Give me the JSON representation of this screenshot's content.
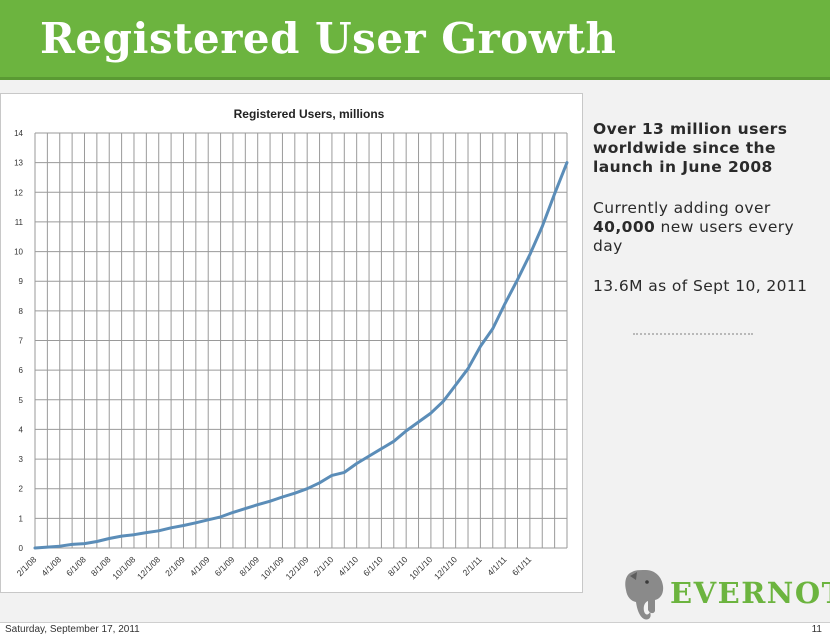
{
  "slide": {
    "title": "Registered User Growth"
  },
  "sidebar": {
    "headline": "Over 13 million users worldwide since the launch in June 2008",
    "adding_pre": "Currently adding over",
    "adding_bold": "40,000",
    "adding_post": "new users every day",
    "as_of": "13.6M as of Sept 10, 2011"
  },
  "logo": {
    "name": "EVERNOTE",
    "icon": "elephant-icon"
  },
  "footer": {
    "date": "Saturday, September 17, 2011",
    "page": "11"
  },
  "colors": {
    "header_green": "#6cb43f",
    "line_blue": "#5b8db8"
  },
  "chart_data": {
    "type": "line",
    "title": "Registered Users, millions",
    "xlabel": "",
    "ylabel": "",
    "ylim": [
      0,
      14
    ],
    "yticks": [
      0,
      1,
      2,
      3,
      4,
      5,
      6,
      7,
      8,
      9,
      10,
      11,
      12,
      13,
      14
    ],
    "xticks": [
      "2/1/08",
      "4/1/08",
      "6/1/08",
      "8/1/08",
      "10/1/08",
      "12/1/08",
      "2/1/09",
      "4/1/09",
      "6/1/09",
      "8/1/09",
      "10/1/09",
      "12/1/09",
      "2/1/10",
      "4/1/10",
      "6/1/10",
      "8/1/10",
      "10/1/10",
      "12/1/10",
      "2/1/11",
      "4/1/11",
      "6/1/11"
    ],
    "grid": true,
    "series": [
      {
        "x": [
          "2/1/08",
          "3/1/08",
          "4/1/08",
          "5/1/08",
          "6/1/08",
          "7/1/08",
          "8/1/08",
          "9/1/08",
          "10/1/08",
          "11/1/08",
          "12/1/08",
          "1/1/09",
          "2/1/09",
          "3/1/09",
          "4/1/09",
          "5/1/09",
          "6/1/09",
          "7/1/09",
          "8/1/09",
          "9/1/09",
          "10/1/09",
          "11/1/09",
          "12/1/09",
          "1/1/10",
          "2/1/10",
          "3/1/10",
          "4/1/10",
          "5/1/10",
          "6/1/10",
          "7/1/10",
          "8/1/10",
          "9/1/10",
          "10/1/10",
          "11/1/10",
          "12/1/10",
          "1/1/11",
          "2/1/11",
          "3/1/11",
          "4/1/11",
          "5/1/11",
          "6/1/11",
          "7/1/11",
          "8/1/11",
          "9/1/11"
        ],
        "values": [
          0,
          0.03,
          0.06,
          0.12,
          0.15,
          0.22,
          0.32,
          0.4,
          0.45,
          0.52,
          0.58,
          0.68,
          0.76,
          0.85,
          0.95,
          1.05,
          1.2,
          1.33,
          1.46,
          1.58,
          1.72,
          1.85,
          2.0,
          2.2,
          2.45,
          2.55,
          2.85,
          3.1,
          3.35,
          3.6,
          3.95,
          4.25,
          4.55,
          4.95,
          5.5,
          6.05,
          6.8,
          7.4,
          8.25,
          9.05,
          9.9,
          10.85,
          11.95,
          13.0
        ]
      }
    ]
  }
}
